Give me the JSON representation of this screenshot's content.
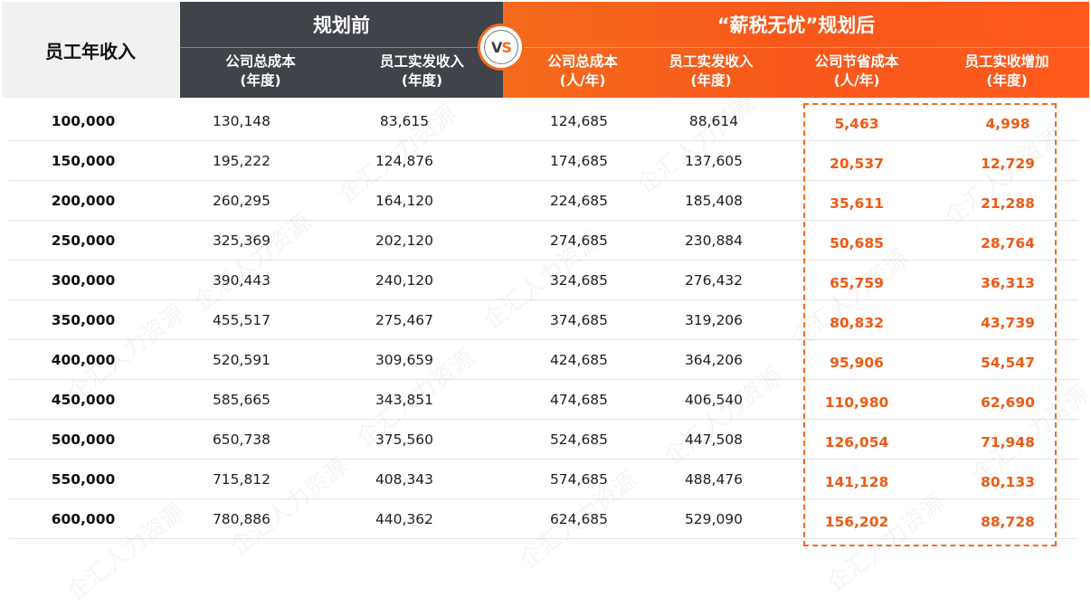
{
  "header": {
    "income_label": "员工年收入",
    "before_title": "规划前",
    "after_title": "“薪税无忧”规划后",
    "vs_v": "V",
    "vs_s": "S",
    "columns": [
      {
        "line1": "公司总成本",
        "line2": "(年度)"
      },
      {
        "line1": "员工实发收入",
        "line2": "(年度)"
      },
      {
        "line1": "公司总成本",
        "line2": "(人/年)"
      },
      {
        "line1": "员工实发收入",
        "line2": "(年度)"
      },
      {
        "line1": "公司节省成本",
        "line2": "(人/年)"
      },
      {
        "line1": "员工实收增加",
        "line2": "(年度)"
      }
    ]
  },
  "colors": {
    "before_header": "#404349",
    "after_header": "#f46a1c",
    "highlight_text": "#f05a14"
  },
  "watermark": "企汇人力资源",
  "rows": [
    [
      "100,000",
      "130,148",
      "83,615",
      "124,685",
      "88,614",
      "5,463",
      "4,998"
    ],
    [
      "150,000",
      "195,222",
      "124,876",
      "174,685",
      "137,605",
      "20,537",
      "12,729"
    ],
    [
      "200,000",
      "260,295",
      "164,120",
      "224,685",
      "185,408",
      "35,611",
      "21,288"
    ],
    [
      "250,000",
      "325,369",
      "202,120",
      "274,685",
      "230,884",
      "50,685",
      "28,764"
    ],
    [
      "300,000",
      "390,443",
      "240,120",
      "324,685",
      "276,432",
      "65,759",
      "36,313"
    ],
    [
      "350,000",
      "455,517",
      "275,467",
      "374,685",
      "319,206",
      "80,832",
      "43,739"
    ],
    [
      "400,000",
      "520,591",
      "309,659",
      "424,685",
      "364,206",
      "95,906",
      "54,547"
    ],
    [
      "450,000",
      "585,665",
      "343,851",
      "474,685",
      "406,540",
      "110,980",
      "62,690"
    ],
    [
      "500,000",
      "650,738",
      "375,560",
      "524,685",
      "447,508",
      "126,054",
      "71,948"
    ],
    [
      "550,000",
      "715,812",
      "408,343",
      "574,685",
      "488,476",
      "141,128",
      "80,133"
    ],
    [
      "600,000",
      "780,886",
      "440,362",
      "624,685",
      "529,090",
      "156,202",
      "88,728"
    ]
  ]
}
